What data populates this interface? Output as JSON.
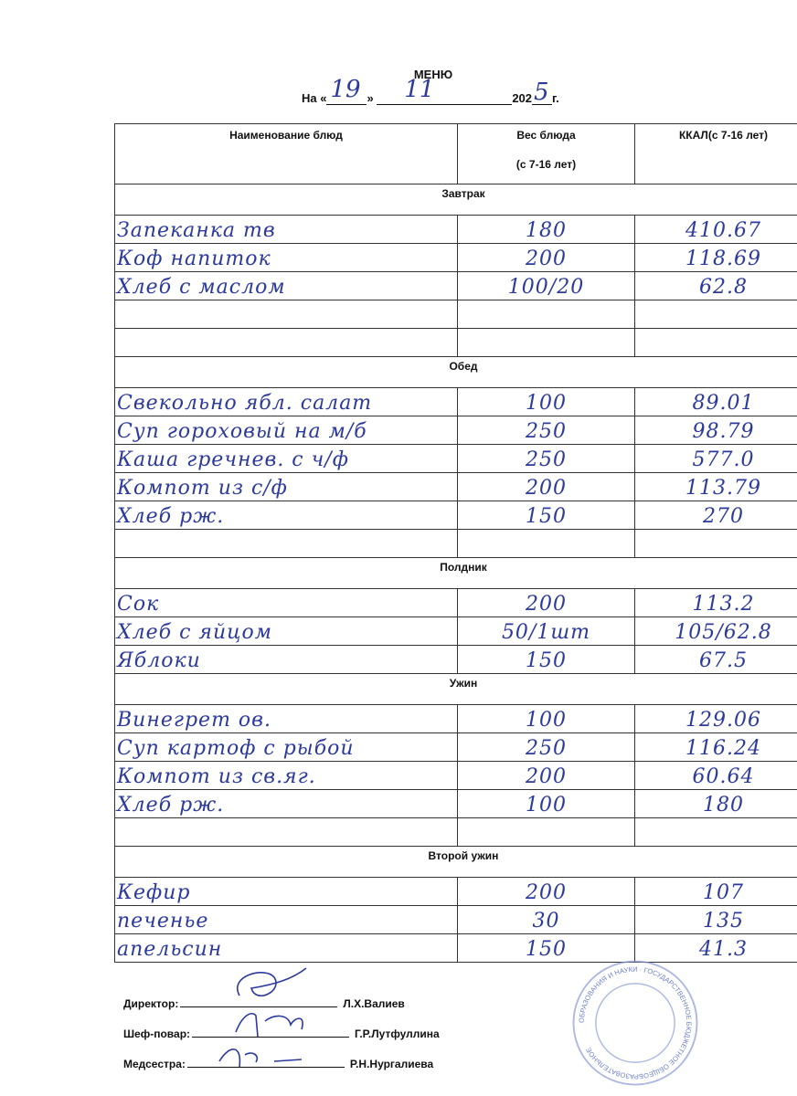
{
  "title": "МЕНЮ",
  "date": {
    "prefix": "На «",
    "day": "19",
    "mid": "»",
    "month": "11",
    "year_prefix": "202",
    "year_digit": "5",
    "suffix": "г."
  },
  "table": {
    "headers": {
      "name": "Наименование блюд",
      "weight": "Вес блюда",
      "weight_sub": "(с 7-16 лет)",
      "kcal": "ККАЛ(с 7-16 лет)"
    },
    "sections": [
      {
        "title": "Завтрак",
        "items": [
          {
            "name": "Запеканка тв",
            "weight": "180",
            "kcal": "410.67"
          },
          {
            "name": "Коф напиток",
            "weight": "200",
            "kcal": "118.69"
          },
          {
            "name": "Хлеб с маслом",
            "weight": "100/20",
            "kcal": "62.8"
          },
          {
            "name": "",
            "weight": "",
            "kcal": ""
          },
          {
            "name": "",
            "weight": "",
            "kcal": ""
          }
        ]
      },
      {
        "title": "Обед",
        "inline_first": true,
        "items": [
          {
            "name": "Свекольно ябл. салат",
            "weight": "100",
            "kcal": "89.01"
          },
          {
            "name": "Суп гороховый на м/б",
            "weight": "250",
            "kcal": "98.79"
          },
          {
            "name": "Каша гречнев. с ч/ф",
            "weight": "250",
            "kcal": "577.0"
          },
          {
            "name": "Компот из с/ф",
            "weight": "200",
            "kcal": "113.79"
          },
          {
            "name": "Хлеб рж.",
            "weight": "150",
            "kcal": "270"
          },
          {
            "name": "",
            "weight": "",
            "kcal": ""
          }
        ]
      },
      {
        "title": "Полдник",
        "items": [
          {
            "name": "Сок",
            "weight": "200",
            "kcal": "113.2"
          },
          {
            "name": "Хлеб с яйцом",
            "weight": "50/1шт",
            "kcal": "105/62.8"
          },
          {
            "name": "Яблоки",
            "weight": "150",
            "kcal": "67.5"
          }
        ]
      },
      {
        "title": "Ужин",
        "items": [
          {
            "name": "Винегрет ов.",
            "weight": "100",
            "kcal": "129.06"
          },
          {
            "name": "Суп картоф с рыбой",
            "weight": "250",
            "kcal": "116.24"
          },
          {
            "name": "Компот из св.яг.",
            "weight": "200",
            "kcal": "60.64"
          },
          {
            "name": "Хлеб рж.",
            "weight": "100",
            "kcal": "180"
          },
          {
            "name": "",
            "weight": "",
            "kcal": ""
          }
        ]
      },
      {
        "title": "Второй ужин",
        "items": [
          {
            "name": "Кефир",
            "weight": "200",
            "kcal": "107"
          },
          {
            "name": "печенье",
            "weight": "30",
            "kcal": "135"
          },
          {
            "name": "апельсин",
            "weight": "150",
            "kcal": "41.3"
          }
        ]
      }
    ]
  },
  "signatures": [
    {
      "role": "Директор:",
      "name": "Л.Х.Валиев"
    },
    {
      "role": "Шеф-повар:",
      "name": "Г.Р.Лутфуллина"
    },
    {
      "role": "Медсестра:",
      "name": "Р.Н.Нургалиева"
    }
  ],
  "stamp": {
    "text": "ОБРАЗОВАНИЯ И НАУКИ · ГОСУДАРСТВЕННОЕ БЮДЖЕТНОЕ ОБЩЕОБРАЗОВАТЕЛЬНОЕ"
  },
  "colors": {
    "ink": "#2b3a9c",
    "stamp": "#7f8fd0"
  }
}
